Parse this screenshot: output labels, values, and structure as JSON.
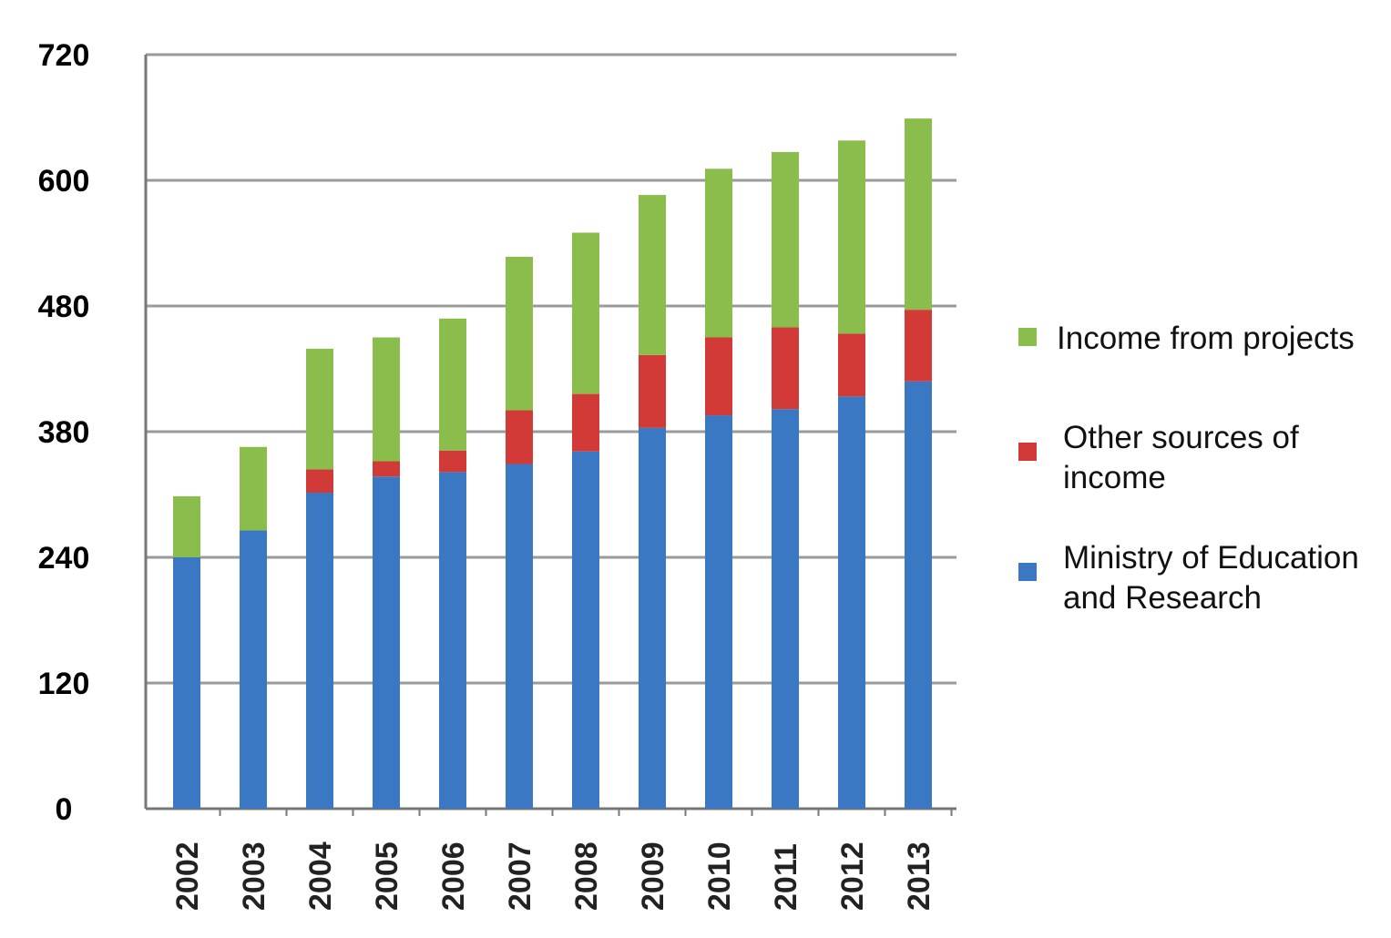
{
  "chart_data": {
    "type": "bar",
    "stacked": true,
    "title": "",
    "xlabel": "",
    "ylabel": "",
    "categories": [
      "2002",
      "2003",
      "2004",
      "2005",
      "2006",
      "2007",
      "2008",
      "2009",
      "2010",
      "2011",
      "2012",
      "2013"
    ],
    "y_ticks": [
      "0",
      "120",
      "240",
      "380",
      "480",
      "600",
      "720"
    ],
    "ylim": [
      0,
      720
    ],
    "grid": true,
    "legend_position": "right",
    "series": [
      {
        "name": "Ministry of Education and Research",
        "color": "#3b78c3",
        "values": [
          240,
          270,
          312,
          330,
          335,
          344,
          358,
          383,
          393,
          398,
          408,
          420
        ]
      },
      {
        "name": "Other sources of income",
        "color": "#d13a36",
        "values": [
          0,
          0,
          26,
          17,
          24,
          53,
          52,
          58,
          62,
          65,
          50,
          57
        ]
      },
      {
        "name": "Income from projects",
        "color": "#8bbd4c",
        "values": [
          68,
          93,
          108,
          108,
          111,
          130,
          140,
          145,
          156,
          164,
          180,
          182
        ]
      }
    ],
    "legend": {
      "items": [
        {
          "series": 2,
          "lines": [
            "Income from projects"
          ]
        },
        {
          "series": 1,
          "lines": [
            "Other sources of",
            "income"
          ]
        },
        {
          "series": 0,
          "lines": [
            "Ministry of Education",
            "and Research"
          ]
        }
      ]
    }
  }
}
